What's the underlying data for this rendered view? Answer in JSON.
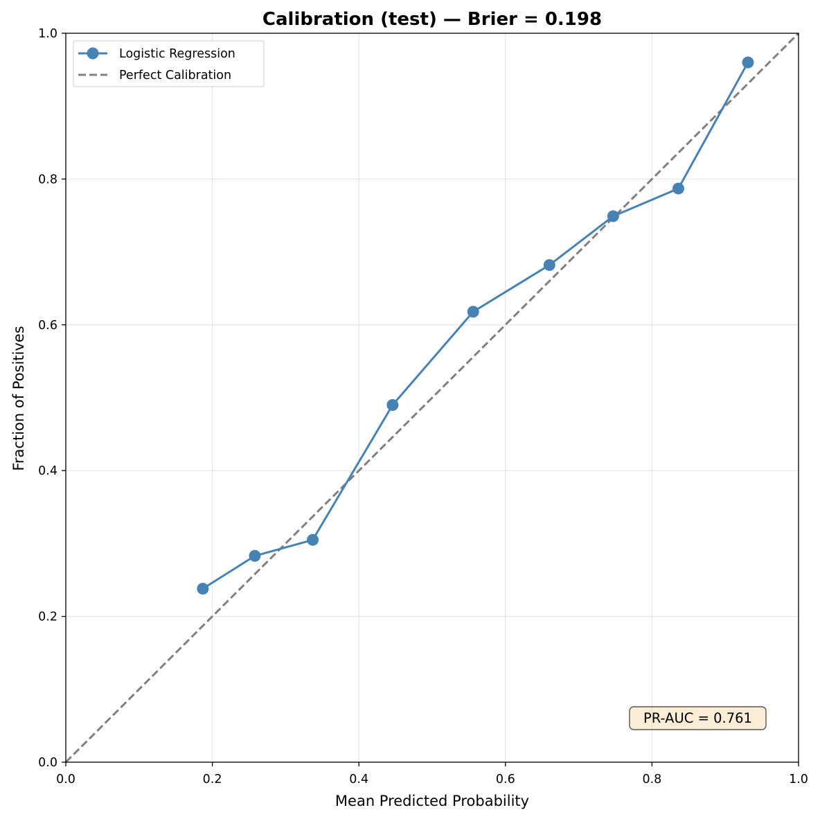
{
  "chart_data": {
    "type": "line",
    "title": "Calibration (test) — Brier = 0.198",
    "xlabel": "Mean Predicted Probability",
    "ylabel": "Fraction of Positives",
    "xlim": [
      0.0,
      1.0
    ],
    "ylim": [
      0.0,
      1.0
    ],
    "xticks": [
      "0.0",
      "0.2",
      "0.4",
      "0.6",
      "0.8",
      "1.0"
    ],
    "yticks": [
      "0.0",
      "0.2",
      "0.4",
      "0.6",
      "0.8",
      "1.0"
    ],
    "grid": true,
    "legend_position": "upper-left",
    "series": [
      {
        "name": "Logistic Regression",
        "style": "solid line with circle markers",
        "color": "#4682b4",
        "x": [
          0.187,
          0.258,
          0.337,
          0.446,
          0.556,
          0.66,
          0.747,
          0.836,
          0.931
        ],
        "y": [
          0.238,
          0.283,
          0.305,
          0.49,
          0.618,
          0.682,
          0.749,
          0.787,
          0.96
        ]
      },
      {
        "name": "Perfect Calibration",
        "style": "dashed line",
        "color": "#808080",
        "x": [
          0.0,
          1.0
        ],
        "y": [
          0.0,
          1.0
        ]
      }
    ],
    "annotation": {
      "text": "PR-AUC = 0.761",
      "position": "lower-right",
      "box_fill": "#f5deb3",
      "box_edge": "#555555"
    }
  }
}
